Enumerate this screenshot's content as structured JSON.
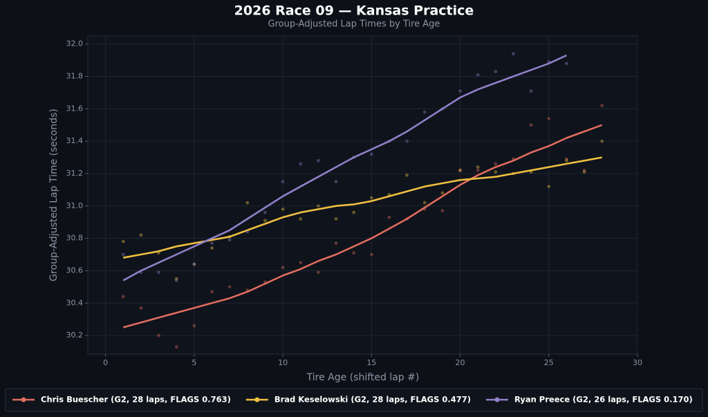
{
  "chart_data": {
    "type": "line",
    "title": "2026 Race 09 — Kansas Practice",
    "subtitle": "Group-Adjusted Lap Times by Tire Age",
    "x_label": "Tire Age (shifted lap #)",
    "y_label": "Group-Adjusted Lap Time (seconds)",
    "xlim": [
      -1,
      30
    ],
    "xticks": [
      0,
      5,
      10,
      15,
      20,
      25,
      30
    ],
    "ylim": [
      30.085,
      32.05
    ],
    "yticks": [
      30.2,
      30.4,
      30.6,
      30.8,
      {
        "value": 31.0,
        "label": "31.0"
      },
      31.2,
      31.4,
      31.6,
      31.8,
      {
        "value": 32.0,
        "label": "32.0"
      }
    ],
    "grid": true,
    "legend": "bottom",
    "series": [
      {
        "name": "Chris Buescher (G2, 28 laps, FLAGS 0.763)",
        "color": "#e06c5f",
        "x": [
          1,
          2,
          3,
          4,
          5,
          6,
          7,
          8,
          9,
          10,
          11,
          12,
          13,
          14,
          15,
          16,
          17,
          18,
          19,
          20,
          21,
          22,
          23,
          24,
          25,
          26,
          27,
          28
        ],
        "values": [
          30.44,
          30.37,
          30.2,
          30.13,
          30.26,
          30.47,
          30.5,
          30.48,
          30.53,
          30.62,
          30.65,
          30.59,
          30.77,
          30.71,
          30.7,
          30.93,
          30.92,
          30.98,
          30.97,
          31.22,
          31.22,
          31.26,
          31.29,
          31.5,
          31.54,
          31.29,
          31.22,
          31.62
        ],
        "fit": [
          30.25,
          30.28,
          30.31,
          30.34,
          30.37,
          30.4,
          30.43,
          30.47,
          30.52,
          30.57,
          30.61,
          30.66,
          30.7,
          30.75,
          30.8,
          30.86,
          30.92,
          30.99,
          31.06,
          31.13,
          31.19,
          31.24,
          31.28,
          31.33,
          31.37,
          31.42,
          31.46,
          31.5
        ]
      },
      {
        "name": "Brad Keselowski (G2, 28 laps, FLAGS 0.477)",
        "color": "#f0c040",
        "x": [
          1,
          2,
          3,
          4,
          5,
          6,
          7,
          8,
          9,
          10,
          11,
          12,
          13,
          14,
          15,
          16,
          17,
          18,
          19,
          20,
          21,
          22,
          23,
          24,
          25,
          26,
          27,
          28
        ],
        "values": [
          30.78,
          30.82,
          30.71,
          30.55,
          30.64,
          30.74,
          30.81,
          31.02,
          30.91,
          30.98,
          30.92,
          31.0,
          30.92,
          30.96,
          31.05,
          31.07,
          31.19,
          31.02,
          31.08,
          31.22,
          31.24,
          31.21,
          31.2,
          31.21,
          31.12,
          31.28,
          31.21,
          31.4
        ],
        "fit": [
          30.68,
          30.7,
          30.72,
          30.75,
          30.77,
          30.79,
          30.81,
          30.85,
          30.89,
          30.93,
          30.96,
          30.98,
          31.0,
          31.01,
          31.03,
          31.06,
          31.09,
          31.12,
          31.14,
          31.16,
          31.17,
          31.18,
          31.2,
          31.22,
          31.24,
          31.26,
          31.28,
          31.3
        ]
      },
      {
        "name": "Ryan Preece (G2, 26 laps, FLAGS 0.170)",
        "color": "#9080c8",
        "x": [
          1,
          2,
          3,
          4,
          5,
          6,
          7,
          8,
          9,
          10,
          11,
          12,
          13,
          14,
          15,
          16,
          17,
          18,
          19,
          20,
          21,
          22,
          23,
          24,
          25,
          26
        ],
        "values": [
          30.7,
          30.59,
          30.59,
          30.54,
          30.64,
          30.77,
          30.79,
          30.84,
          30.96,
          31.15,
          31.26,
          31.28,
          31.15,
          31.3,
          31.32,
          31.4,
          31.4,
          31.58,
          31.6,
          31.71,
          31.81,
          31.83,
          31.94,
          31.71,
          31.89,
          31.88
        ],
        "fit": [
          30.54,
          30.6,
          30.65,
          30.7,
          30.75,
          30.8,
          30.85,
          30.92,
          30.99,
          31.06,
          31.12,
          31.18,
          31.24,
          31.3,
          31.35,
          31.4,
          31.46,
          31.53,
          31.6,
          31.67,
          31.72,
          31.76,
          31.8,
          31.84,
          31.88,
          31.93
        ]
      }
    ]
  }
}
